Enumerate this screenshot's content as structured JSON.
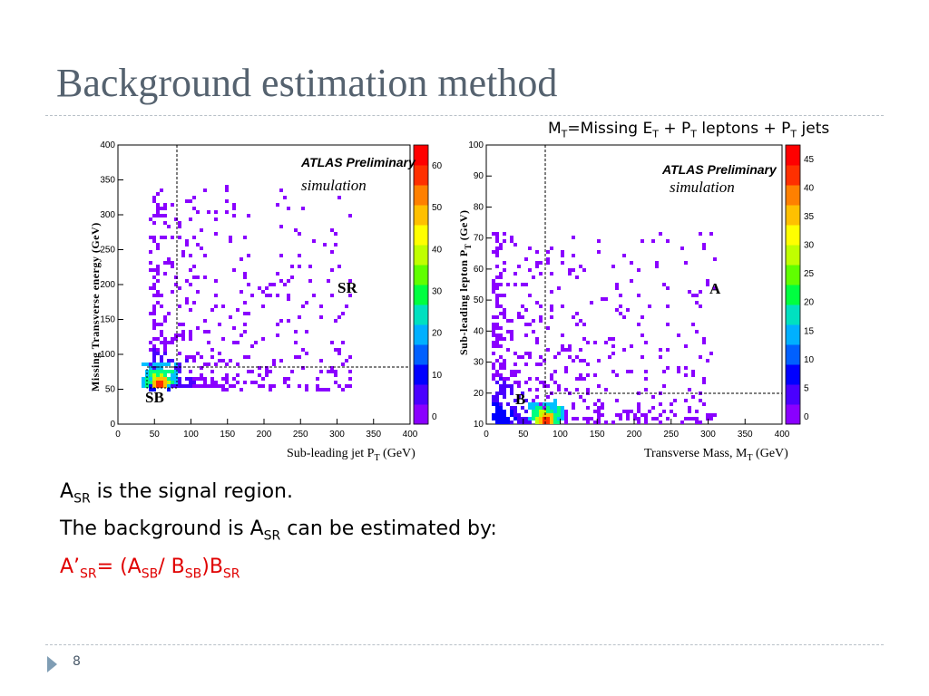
{
  "title": "Background estimation method",
  "formula_top": {
    "m": "M",
    "m_sub": "T",
    "eq": "=Missing E",
    "e_sub": "T",
    "plus1": " + P",
    "p1_sub": "T",
    "leptons": " leptons + P",
    "p2_sub": "T",
    "jets": " jets"
  },
  "body": {
    "line1_a": "A",
    "line1_sub": "SR",
    "line1_rest": " is the signal region.",
    "line2_pre": "The background is A",
    "line2_sub": "SR",
    "line2_rest": "  can be estimated by:",
    "line3": {
      "a": "A’",
      "s1": "SR",
      "eq": "= (A",
      "s2": "SB",
      "slash": "/ B",
      "s3": "SB",
      "close": ")B",
      "s4": "SR"
    }
  },
  "left_plot": {
    "ylabel": "Missing Transverse energy  (GeV)",
    "xlabel": "Sub-leading jet P",
    "xlabel_sub": "T",
    "xlabel_unit": " (GeV)",
    "xticks": [
      "0",
      "50",
      "100",
      "150",
      "200",
      "250",
      "300",
      "350",
      "400"
    ],
    "yticks": [
      "0",
      "50",
      "100",
      "150",
      "200",
      "250",
      "300",
      "350",
      "400"
    ],
    "colorbar_ticks": [
      "0",
      "10",
      "20",
      "30",
      "40",
      "50",
      "60"
    ],
    "atlas": "ATLAS Preliminary",
    "sim": "simulation",
    "region_sr": "SR",
    "region_sb": "SB"
  },
  "right_plot": {
    "ylabel": "Sub-leading lepton P",
    "ylabel_sub": "T",
    "ylabel_unit": " (GeV)",
    "xlabel": "Transverse Mass, M",
    "xlabel_sub": "T",
    "xlabel_unit": " (GeV)",
    "xticks": [
      "0",
      "50",
      "100",
      "150",
      "200",
      "250",
      "300",
      "350",
      "400"
    ],
    "yticks": [
      "10",
      "20",
      "30",
      "40",
      "50",
      "60",
      "70",
      "80",
      "90",
      "100"
    ],
    "colorbar_ticks": [
      "0",
      "5",
      "10",
      "15",
      "20",
      "25",
      "30",
      "35",
      "40",
      "45"
    ],
    "atlas": "ATLAS Preliminary",
    "sim": "simulation",
    "region_a": "A",
    "region_b": "B"
  },
  "page_number": "8",
  "colors": {
    "title": "#55626f",
    "highlight": "#e00000",
    "accent": "#7f9db4"
  }
}
